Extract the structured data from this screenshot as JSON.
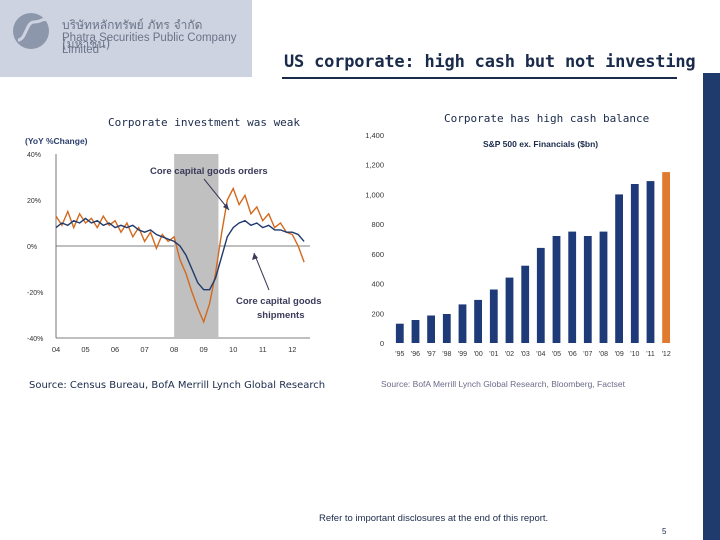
{
  "header": {
    "company_thai": "บริษัทหลักทรัพย์ ภัทร จำกัด (มหาชน)",
    "company_eng": "Phatra Securities Public Company Limited",
    "title": "US corporate: high cash but not investing"
  },
  "colors": {
    "title": "#1a2a4a",
    "navy_bar": "#1f3a6d",
    "line_orders": "#d2691e",
    "line_shipments": "#1f3a6d",
    "recession": "#c0c0c0",
    "bar_blue": "#1f3a78",
    "bar_highlight": "#e07a2e"
  },
  "chart_data": [
    {
      "type": "line",
      "subtitle": "Corporate investment was weak",
      "ylabel": "(YoY %Change)",
      "ylim": [
        -40,
        40
      ],
      "yticks": [
        "40%",
        "20%",
        "0%",
        "-20%",
        "-40%"
      ],
      "xticks": [
        "04",
        "05",
        "06",
        "07",
        "08",
        "09",
        "10",
        "11",
        "12"
      ],
      "xlim": [
        2004.0,
        2012.6
      ],
      "recession": [
        2008.0,
        2009.5
      ],
      "annotations": [
        "Core capital goods orders",
        "Core capital goods shipments"
      ],
      "series": [
        {
          "name": "Core capital goods orders",
          "x": [
            2004.0,
            2004.2,
            2004.4,
            2004.6,
            2004.8,
            2005.0,
            2005.2,
            2005.4,
            2005.6,
            2005.8,
            2006.0,
            2006.2,
            2006.4,
            2006.6,
            2006.8,
            2007.0,
            2007.2,
            2007.4,
            2007.6,
            2007.8,
            2008.0,
            2008.2,
            2008.4,
            2008.6,
            2008.8,
            2009.0,
            2009.2,
            2009.4,
            2009.6,
            2009.8,
            2010.0,
            2010.2,
            2010.4,
            2010.6,
            2010.8,
            2011.0,
            2011.2,
            2011.4,
            2011.6,
            2011.8,
            2012.0,
            2012.2,
            2012.4
          ],
          "values": [
            13,
            9,
            15,
            8,
            14,
            10,
            12,
            8,
            13,
            9,
            11,
            6,
            10,
            4,
            8,
            2,
            6,
            -1,
            5,
            2,
            4,
            -6,
            -12,
            -20,
            -27,
            -33,
            -25,
            -12,
            5,
            20,
            25,
            18,
            22,
            14,
            17,
            11,
            14,
            8,
            10,
            6,
            5,
            0,
            -7
          ]
        },
        {
          "name": "Core capital goods shipments",
          "x": [
            2004.0,
            2004.2,
            2004.4,
            2004.6,
            2004.8,
            2005.0,
            2005.2,
            2005.4,
            2005.6,
            2005.8,
            2006.0,
            2006.2,
            2006.4,
            2006.6,
            2006.8,
            2007.0,
            2007.2,
            2007.4,
            2007.6,
            2007.8,
            2008.0,
            2008.2,
            2008.4,
            2008.6,
            2008.8,
            2009.0,
            2009.2,
            2009.4,
            2009.6,
            2009.8,
            2010.0,
            2010.2,
            2010.4,
            2010.6,
            2010.8,
            2011.0,
            2011.2,
            2011.4,
            2011.6,
            2011.8,
            2012.0,
            2012.2,
            2012.4
          ],
          "values": [
            8,
            10,
            9,
            11,
            10,
            12,
            10,
            11,
            9,
            10,
            8,
            9,
            8,
            9,
            7,
            6,
            7,
            5,
            4,
            3,
            2,
            0,
            -4,
            -10,
            -16,
            -19,
            -19,
            -14,
            -5,
            4,
            8,
            10,
            11,
            9,
            10,
            8,
            9,
            7,
            7,
            6,
            6,
            5,
            2
          ]
        }
      ],
      "source": "Source: Census Bureau, BofA Merrill Lynch Global Research"
    },
    {
      "type": "bar",
      "subtitle": "Corporate has high cash balance",
      "title": "S&P 500 ex. Financials ($bn)",
      "ylim": [
        0,
        1400
      ],
      "yticks": [
        "1,400",
        "1,200",
        "1,000",
        "800",
        "600",
        "400",
        "200",
        "0"
      ],
      "categories": [
        "'95",
        "'96",
        "'97",
        "'98",
        "'99",
        "'00",
        "'01",
        "'02",
        "'03",
        "'04",
        "'05",
        "'06",
        "'07",
        "'08",
        "'09",
        "'10",
        "'11",
        "'12"
      ],
      "values": [
        130,
        155,
        185,
        195,
        260,
        290,
        360,
        440,
        520,
        640,
        720,
        750,
        720,
        750,
        1000,
        1070,
        1090,
        1150
      ],
      "highlight_last": true,
      "source": "Source: BofA Merrill Lynch Global Research, Bloomberg, Factset"
    }
  ],
  "footer": {
    "disclaimer": "Refer to important disclosures at the end of this report.",
    "page": "5"
  }
}
